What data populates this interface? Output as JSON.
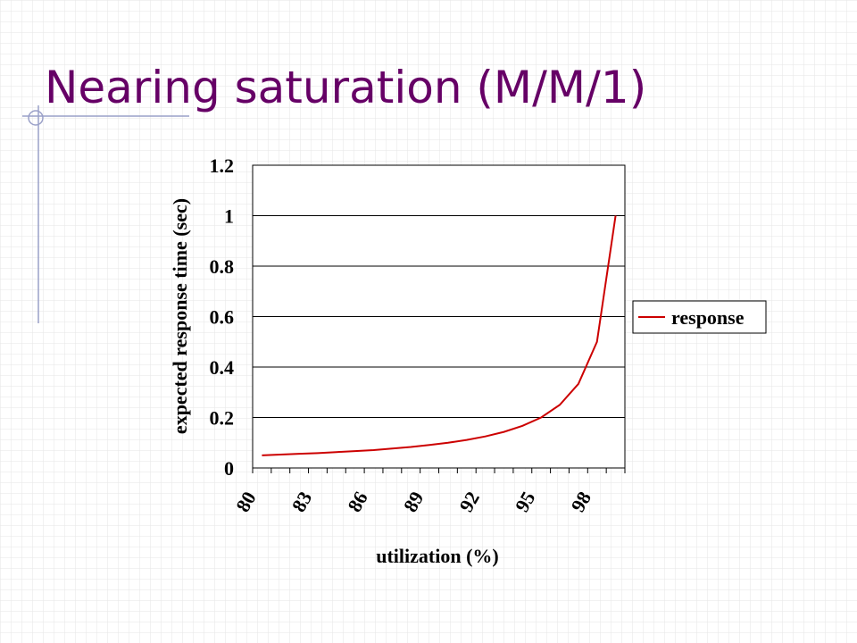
{
  "chart_data": {
    "type": "line",
    "title": "Nearing saturation (M/M/1)",
    "x_label": "utilization (%)",
    "y_label": "expected response time (sec)",
    "categories": [
      "80",
      null,
      null,
      "83",
      null,
      null,
      "86",
      null,
      null,
      "89",
      null,
      null,
      "92",
      null,
      null,
      "95",
      null,
      null,
      "98",
      null
    ],
    "series": [
      {
        "name": "response",
        "color": "#cc0000",
        "values": [
          0.05,
          0.053,
          0.056,
          0.059,
          0.063,
          0.067,
          0.071,
          0.077,
          0.083,
          0.091,
          0.1,
          0.111,
          0.125,
          0.143,
          0.167,
          0.2,
          0.25,
          0.333,
          0.5,
          1.0
        ]
      }
    ],
    "ylim": [
      0,
      1.2
    ],
    "yticks": [
      0,
      0.2,
      0.4,
      0.6,
      0.8,
      1,
      1.2
    ],
    "grid": true,
    "legend": "right"
  }
}
